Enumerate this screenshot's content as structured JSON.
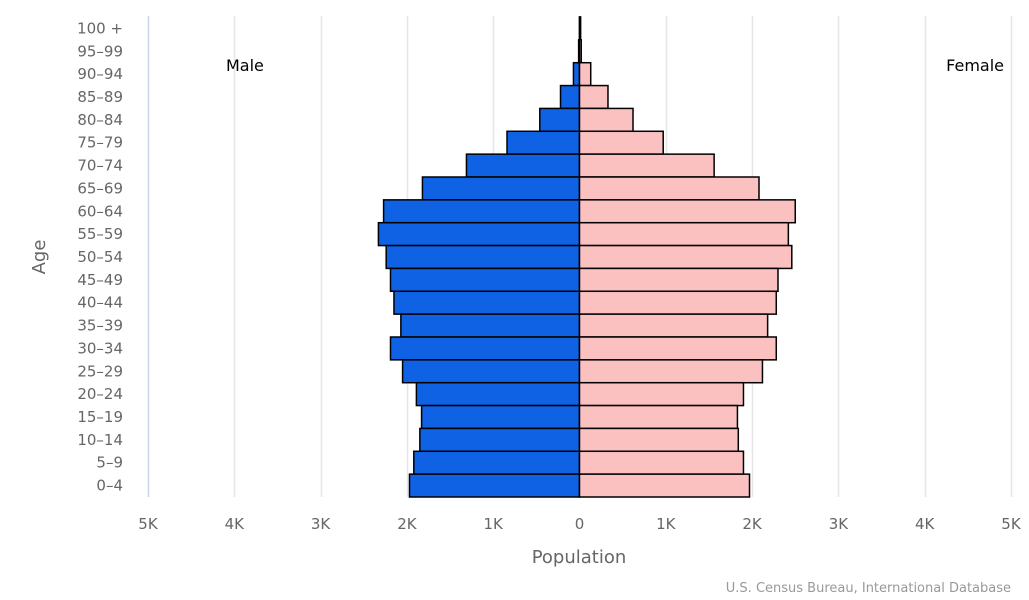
{
  "chart_data": {
    "type": "bar",
    "orientation": "horizontal-population-pyramid",
    "categories": [
      "100 +",
      "95-99",
      "90-94",
      "85-89",
      "80-84",
      "75-79",
      "70-74",
      "65-69",
      "60-64",
      "55-59",
      "50-54",
      "45-49",
      "40-44",
      "35-39",
      "30-34",
      "25-29",
      "20-24",
      "15-19",
      "10-14",
      "5-9",
      "0-4"
    ],
    "series": [
      {
        "name": "Male",
        "color": "#1062e5",
        "values": [
          0,
          10,
          70,
          220,
          460,
          840,
          1310,
          1820,
          2270,
          2330,
          2240,
          2190,
          2150,
          2070,
          2190,
          2050,
          1890,
          1830,
          1850,
          1920,
          1970
        ]
      },
      {
        "name": "Female",
        "color": "#fbc1c1",
        "values": [
          0,
          20,
          130,
          330,
          620,
          970,
          1560,
          2080,
          2500,
          2420,
          2460,
          2300,
          2280,
          2180,
          2280,
          2120,
          1900,
          1830,
          1840,
          1900,
          1970
        ]
      }
    ],
    "xlabel": "Population",
    "ylabel": "Age",
    "xlim": [
      -5000,
      5000
    ],
    "x_ticks": [
      {
        "value": -5000,
        "label": "5K"
      },
      {
        "value": -4000,
        "label": "4K"
      },
      {
        "value": -3000,
        "label": "3K"
      },
      {
        "value": -2000,
        "label": "2K"
      },
      {
        "value": -1000,
        "label": "1K"
      },
      {
        "value": 0,
        "label": "0"
      },
      {
        "value": 1000,
        "label": "1K"
      },
      {
        "value": 2000,
        "label": "2K"
      },
      {
        "value": 3000,
        "label": "3K"
      },
      {
        "value": 4000,
        "label": "4K"
      },
      {
        "value": 5000,
        "label": "5K"
      }
    ],
    "grid": true,
    "annotations": {
      "left": "Male",
      "right": "Female"
    },
    "credit": "U.S. Census Bureau, International Database",
    "bar_border_color": "#000000",
    "grid_color": "#e6e6e6"
  }
}
